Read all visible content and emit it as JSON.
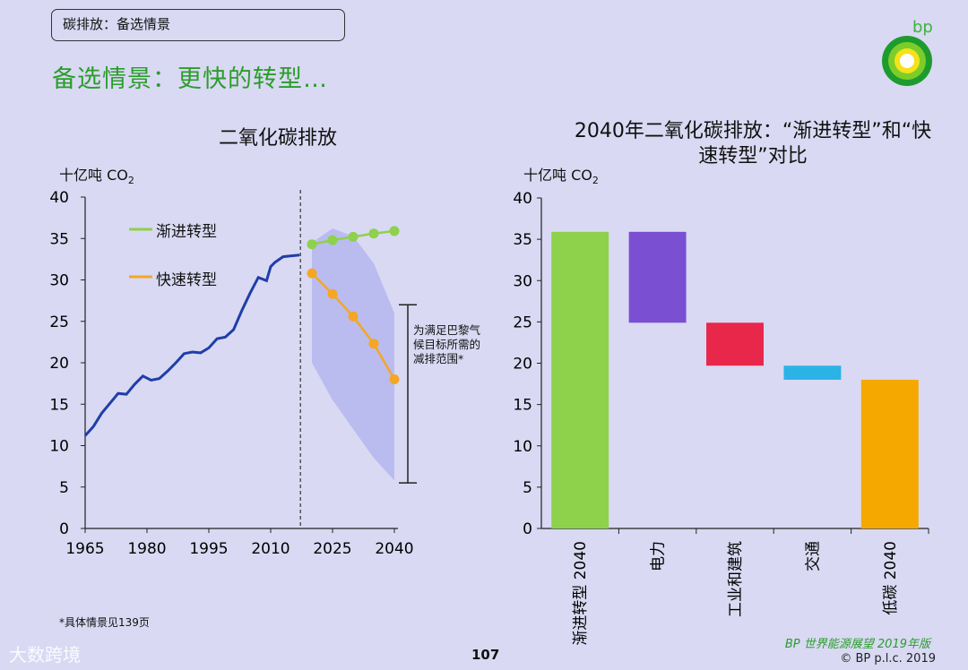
{
  "header": {
    "section_label": "碳排放：备选情景",
    "title": "备选情景：更快的转型…",
    "logo_text": "bp"
  },
  "left_chart_title": "二氧化碳排放",
  "right_chart_title_line1": "2040年二氧化碳排放：“渐进转型”和“快",
  "right_chart_title_line2": "速转型”对比",
  "unit_prefix": "十亿吨 CO",
  "unit_sub": "2",
  "legend": {
    "evolving": "渐进转型",
    "rapid": "快速转型"
  },
  "range_note": "为满足巴黎气候目标所需的减排范围*",
  "footnote": "*具体情景见139页",
  "page_number": "107",
  "watermark": "大数跨境",
  "edition": "BP 世界能源展望 2019年版",
  "copyright": "© BP p.l.c. 2019",
  "colors": {
    "historical": "#1f3ea8",
    "evolving": "#8ed14a",
    "rapid": "#f5a623",
    "range_fill": "#b4b6ef",
    "power": "#7b4fd1",
    "industry": "#e8274b",
    "transport": "#2bb3e6",
    "low_carbon": "#f5a800",
    "title_green": "#2a9d2a"
  },
  "chart_data": [
    {
      "type": "line",
      "title": "二氧化碳排放",
      "ylabel": "十亿吨 CO2",
      "ylim": [
        0,
        40
      ],
      "yticks": [
        0,
        5,
        10,
        15,
        20,
        25,
        30,
        35,
        40
      ],
      "xlim": [
        1965,
        2040
      ],
      "xticks": [
        1965,
        1980,
        1995,
        2010,
        2025,
        2040
      ],
      "projection_start": 2017,
      "historical": {
        "x": [
          1965,
          1967,
          1969,
          1971,
          1973,
          1975,
          1977,
          1979,
          1981,
          1983,
          1985,
          1987,
          1989,
          1991,
          1993,
          1995,
          1997,
          1999,
          2001,
          2003,
          2005,
          2007,
          2009,
          2010,
          2011,
          2013,
          2015,
          2017
        ],
        "y": [
          11.2,
          12.3,
          13.9,
          15.1,
          16.3,
          16.2,
          17.4,
          18.4,
          17.9,
          18.1,
          19.0,
          20.0,
          21.1,
          21.3,
          21.2,
          21.8,
          22.9,
          23.1,
          24.0,
          26.3,
          28.4,
          30.3,
          29.9,
          31.6,
          32.1,
          32.8,
          32.9,
          33.0
        ]
      },
      "series": [
        {
          "name": "渐进转型",
          "x": [
            2020,
            2025,
            2030,
            2035,
            2040
          ],
          "y": [
            34.3,
            34.8,
            35.2,
            35.6,
            35.9
          ]
        },
        {
          "name": "快速转型",
          "x": [
            2020,
            2025,
            2030,
            2035,
            2040
          ],
          "y": [
            30.8,
            28.3,
            25.6,
            22.3,
            18.0
          ]
        }
      ],
      "paris_range": {
        "x": [
          2020,
          2025,
          2030,
          2035,
          2040
        ],
        "upper": [
          34.5,
          36.2,
          35.3,
          32.0,
          26.0
        ],
        "lower": [
          20.0,
          15.5,
          12.0,
          8.5,
          5.8
        ]
      },
      "range_bracket": [
        5.5,
        27.0
      ]
    },
    {
      "type": "bar",
      "subtype": "waterfall",
      "title": "2040年二氧化碳排放：“渐进转型”和“快速转型”对比",
      "ylabel": "十亿吨 CO2",
      "ylim": [
        0,
        40
      ],
      "yticks": [
        0,
        5,
        10,
        15,
        20,
        25,
        30,
        35,
        40
      ],
      "categories": [
        "渐进转型 2040",
        "电力",
        "工业和建筑",
        "交通",
        "低碳 2040"
      ],
      "bars": [
        {
          "label": "渐进转型 2040",
          "bottom": 0,
          "top": 35.9
        },
        {
          "label": "电力",
          "bottom": 24.9,
          "top": 35.9
        },
        {
          "label": "工业和建筑",
          "bottom": 19.7,
          "top": 24.9
        },
        {
          "label": "交通",
          "bottom": 18.0,
          "top": 19.7
        },
        {
          "label": "低碳 2040",
          "bottom": 0,
          "top": 18.0
        }
      ]
    }
  ]
}
